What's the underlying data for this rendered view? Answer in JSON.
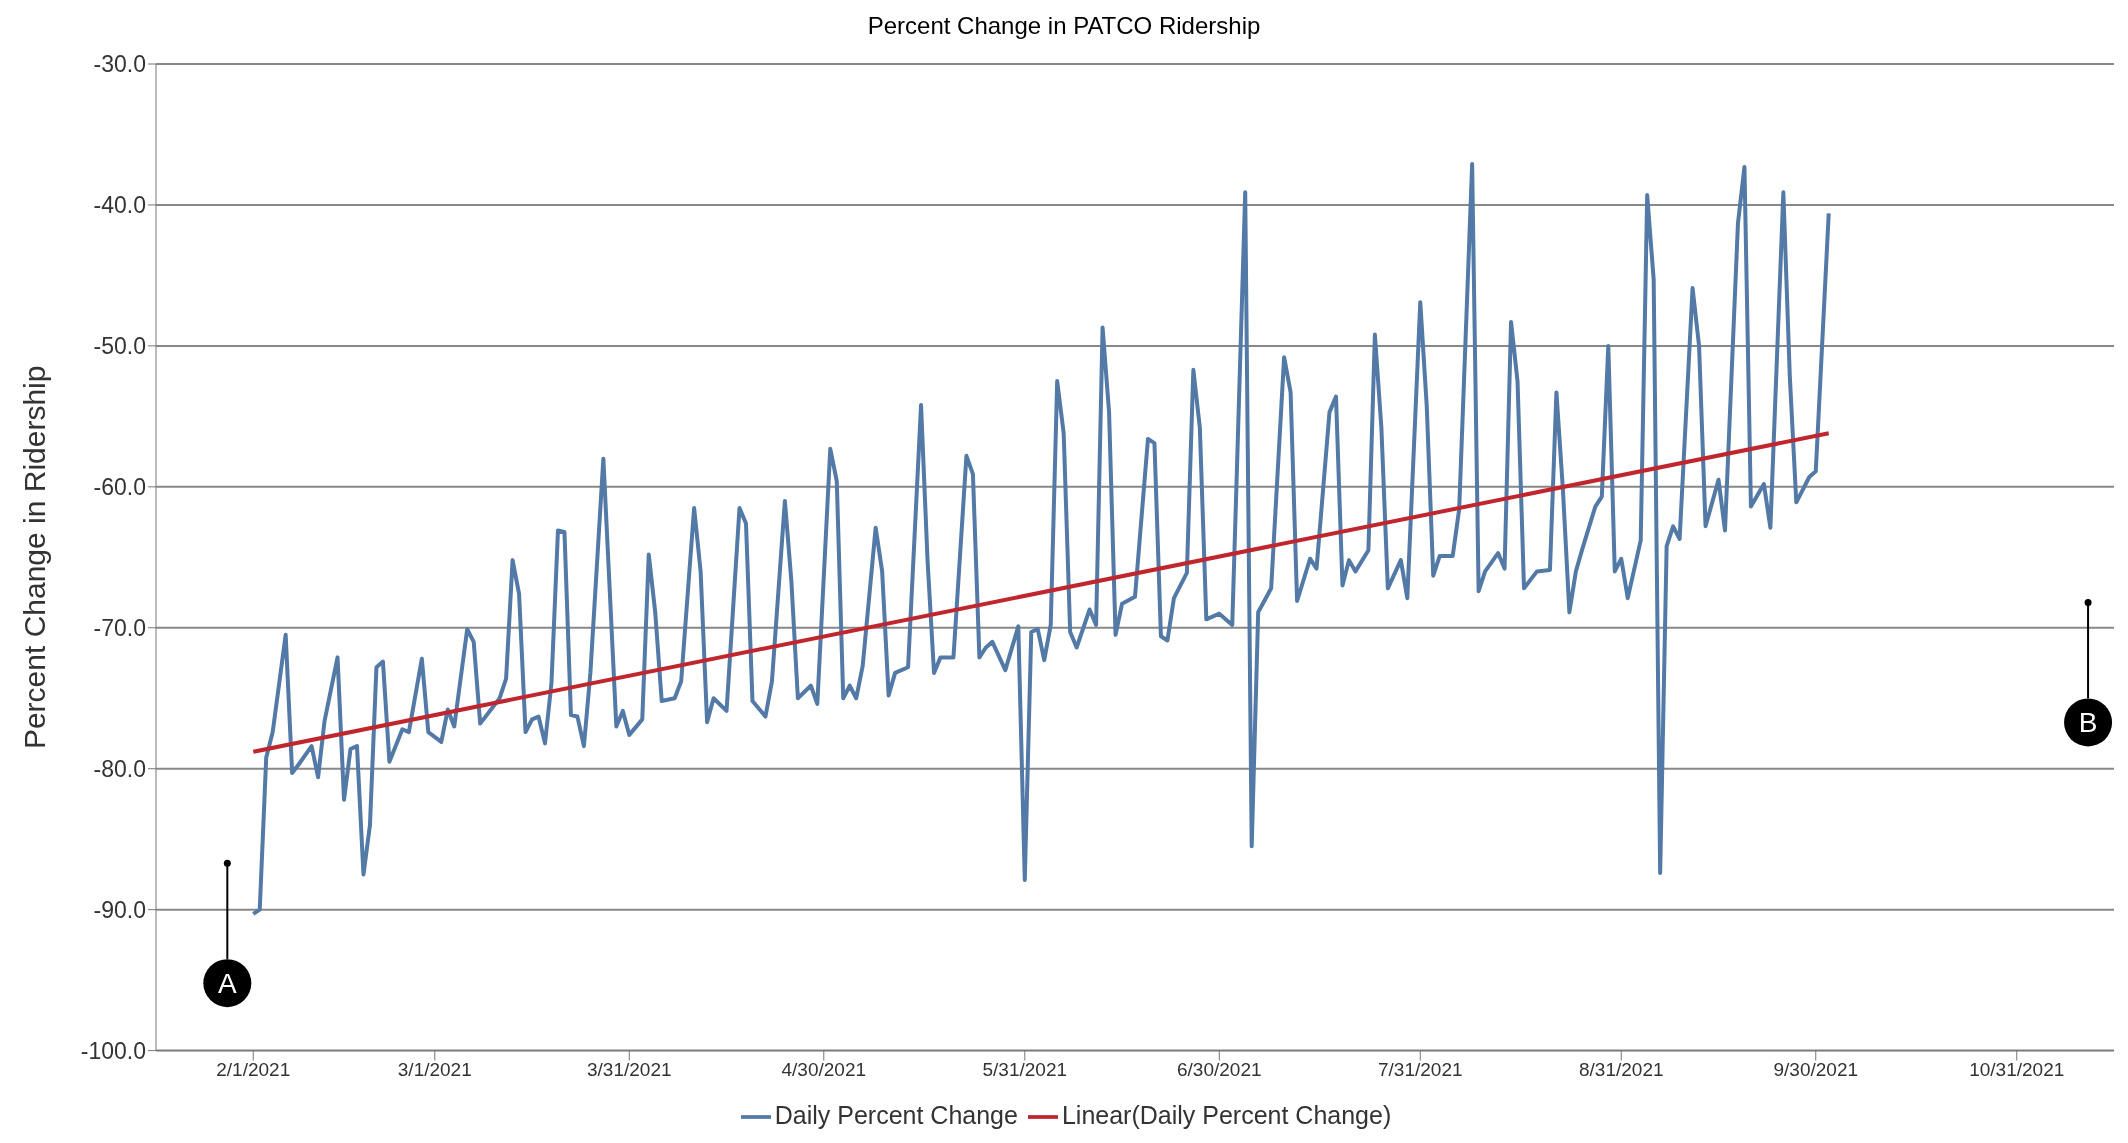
{
  "chart_data": {
    "type": "line",
    "title": "Percent Change in PATCO Ridership",
    "ylabel": "Percent Change in Ridership",
    "grid": "y",
    "legend": "bottom",
    "line_style": "solid",
    "xlim": [
      "2021-01-17",
      "2021-11-15"
    ],
    "xticks": [
      {
        "value": "2021-02-01",
        "label": "2/1/2021"
      },
      {
        "value": "2021-03-01",
        "label": "3/1/2021"
      },
      {
        "value": "2021-03-31",
        "label": "3/31/2021"
      },
      {
        "value": "2021-04-30",
        "label": "4/30/2021"
      },
      {
        "value": "2021-05-31",
        "label": "5/31/2021"
      },
      {
        "value": "2021-06-30",
        "label": "6/30/2021"
      },
      {
        "value": "2021-07-31",
        "label": "7/31/2021"
      },
      {
        "value": "2021-08-31",
        "label": "8/31/2021"
      },
      {
        "value": "2021-09-30",
        "label": "9/30/2021"
      },
      {
        "value": "2021-10-31",
        "label": "10/31/2021"
      }
    ],
    "ylim": [
      -100,
      -30
    ],
    "yticks": [
      {
        "value": -100,
        "label": "-100.0"
      },
      {
        "value": -90,
        "label": "-90.0"
      },
      {
        "value": -80,
        "label": "-80.0"
      },
      {
        "value": -70,
        "label": "-70.0"
      },
      {
        "value": -60,
        "label": "-60.0"
      },
      {
        "value": -50,
        "label": "-50.0"
      },
      {
        "value": -40,
        "label": "-40.0"
      },
      {
        "value": -30,
        "label": "-30.0"
      }
    ],
    "annotations": [
      {
        "text": "A",
        "x": "2021-01-28",
        "y": -86.7
      },
      {
        "text": "B",
        "x": "2021-11-11",
        "y": -68.2
      }
    ],
    "series": [
      {
        "name": "Daily Percent Change",
        "color": "#5379a6",
        "x": [
          "2021-02-01",
          "2021-02-02",
          "2021-02-03",
          "2021-02-04",
          "2021-02-06",
          "2021-02-07",
          "2021-02-08",
          "2021-02-10",
          "2021-02-11",
          "2021-02-12",
          "2021-02-14",
          "2021-02-15",
          "2021-02-16",
          "2021-02-17",
          "2021-02-18",
          "2021-02-19",
          "2021-02-20",
          "2021-02-21",
          "2021-02-22",
          "2021-02-24",
          "2021-02-25",
          "2021-02-27",
          "2021-02-28",
          "2021-03-02",
          "2021-03-03",
          "2021-03-04",
          "2021-03-06",
          "2021-03-07",
          "2021-03-08",
          "2021-03-11",
          "2021-03-12",
          "2021-03-13",
          "2021-03-14",
          "2021-03-15",
          "2021-03-16",
          "2021-03-17",
          "2021-03-18",
          "2021-03-19",
          "2021-03-20",
          "2021-03-21",
          "2021-03-22",
          "2021-03-23",
          "2021-03-24",
          "2021-03-25",
          "2021-03-27",
          "2021-03-29",
          "2021-03-30",
          "2021-03-31",
          "2021-04-02",
          "2021-04-03",
          "2021-04-04",
          "2021-04-05",
          "2021-04-07",
          "2021-04-08",
          "2021-04-10",
          "2021-04-11",
          "2021-04-12",
          "2021-04-13",
          "2021-04-15",
          "2021-04-17",
          "2021-04-18",
          "2021-04-19",
          "2021-04-21",
          "2021-04-22",
          "2021-04-24",
          "2021-04-25",
          "2021-04-26",
          "2021-04-28",
          "2021-04-29",
          "2021-05-01",
          "2021-05-02",
          "2021-05-03",
          "2021-05-04",
          "2021-05-05",
          "2021-05-06",
          "2021-05-08",
          "2021-05-09",
          "2021-05-10",
          "2021-05-11",
          "2021-05-13",
          "2021-05-15",
          "2021-05-16",
          "2021-05-17",
          "2021-05-18",
          "2021-05-20",
          "2021-05-22",
          "2021-05-23",
          "2021-05-24",
          "2021-05-25",
          "2021-05-26",
          "2021-05-28",
          "2021-05-30",
          "2021-05-31",
          "2021-06-01",
          "2021-06-02",
          "2021-06-03",
          "2021-06-04",
          "2021-06-05",
          "2021-06-06",
          "2021-06-07",
          "2021-06-08",
          "2021-06-10",
          "2021-06-11",
          "2021-06-12",
          "2021-06-13",
          "2021-06-14",
          "2021-06-15",
          "2021-06-17",
          "2021-06-19",
          "2021-06-20",
          "2021-06-21",
          "2021-06-22",
          "2021-06-23",
          "2021-06-25",
          "2021-06-26",
          "2021-06-27",
          "2021-06-28",
          "2021-06-30",
          "2021-07-02",
          "2021-07-04",
          "2021-07-05",
          "2021-07-06",
          "2021-07-08",
          "2021-07-10",
          "2021-07-11",
          "2021-07-12",
          "2021-07-14",
          "2021-07-15",
          "2021-07-17",
          "2021-07-18",
          "2021-07-19",
          "2021-07-20",
          "2021-07-21",
          "2021-07-23",
          "2021-07-24",
          "2021-07-25",
          "2021-07-26",
          "2021-07-28",
          "2021-07-29",
          "2021-07-31",
          "2021-08-01",
          "2021-08-02",
          "2021-08-03",
          "2021-08-05",
          "2021-08-06",
          "2021-08-08",
          "2021-08-09",
          "2021-08-10",
          "2021-08-12",
          "2021-08-13",
          "2021-08-14",
          "2021-08-15",
          "2021-08-16",
          "2021-08-18",
          "2021-08-20",
          "2021-08-21",
          "2021-08-22",
          "2021-08-23",
          "2021-08-24",
          "2021-08-25",
          "2021-08-27",
          "2021-08-28",
          "2021-08-29",
          "2021-08-30",
          "2021-08-31",
          "2021-09-01",
          "2021-09-03",
          "2021-09-04",
          "2021-09-05",
          "2021-09-06",
          "2021-09-07",
          "2021-09-08",
          "2021-09-09",
          "2021-09-11",
          "2021-09-12",
          "2021-09-13",
          "2021-09-15",
          "2021-09-16",
          "2021-09-18",
          "2021-09-19",
          "2021-09-20",
          "2021-09-22",
          "2021-09-23",
          "2021-09-25",
          "2021-09-26",
          "2021-09-27",
          "2021-09-29",
          "2021-09-30",
          "2021-10-02"
        ],
        "values": [
          -90.3,
          -90.0,
          -79.2,
          -77.4,
          -70.5,
          -80.3,
          -79.7,
          -78.4,
          -80.6,
          -76.6,
          -72.1,
          -82.2,
          -78.6,
          -78.4,
          -87.5,
          -84.0,
          -72.8,
          -72.4,
          -79.5,
          -77.2,
          -77.4,
          -72.2,
          -77.4,
          -78.1,
          -75.8,
          -77.0,
          -70.1,
          -71.0,
          -76.8,
          -75.0,
          -73.6,
          -65.2,
          -67.6,
          -77.4,
          -76.5,
          -76.3,
          -78.2,
          -73.9,
          -63.1,
          -63.2,
          -76.2,
          -76.3,
          -78.4,
          -73.2,
          -58.0,
          -77.0,
          -75.9,
          -77.6,
          -76.5,
          -64.8,
          -68.9,
          -75.2,
          -75.0,
          -73.8,
          -61.5,
          -66.0,
          -76.7,
          -75.0,
          -75.9,
          -61.5,
          -62.6,
          -75.2,
          -76.3,
          -73.8,
          -61.0,
          -66.7,
          -75.0,
          -74.1,
          -75.4,
          -57.3,
          -59.6,
          -75.0,
          -74.1,
          -75.0,
          -72.7,
          -62.9,
          -66.0,
          -74.8,
          -73.2,
          -72.8,
          -54.2,
          -65.2,
          -73.2,
          -72.1,
          -72.1,
          -57.8,
          -59.1,
          -72.1,
          -71.4,
          -71.0,
          -73.0,
          -69.9,
          -87.9,
          -70.3,
          -70.1,
          -72.3,
          -69.8,
          -52.5,
          -56.2,
          -70.3,
          -71.4,
          -68.7,
          -69.8,
          -48.7,
          -54.7,
          -70.5,
          -68.3,
          -67.8,
          -56.6,
          -56.9,
          -70.6,
          -70.9,
          -67.9,
          -66.1,
          -51.7,
          -55.8,
          -69.4,
          -69.0,
          -69.8,
          -39.1,
          -85.5,
          -68.9,
          -67.2,
          -50.8,
          -53.3,
          -68.1,
          -65.1,
          -65.8,
          -54.7,
          -53.6,
          -67.0,
          -65.2,
          -66.0,
          -64.5,
          -49.2,
          -55.8,
          -67.2,
          -65.2,
          -67.9,
          -46.9,
          -54.3,
          -66.3,
          -64.9,
          -64.9,
          -61.6,
          -37.1,
          -67.4,
          -66.0,
          -64.7,
          -65.8,
          -48.3,
          -52.5,
          -67.2,
          -66.0,
          -65.9,
          -53.3,
          -60.2,
          -68.9,
          -66.0,
          -64.4,
          -61.4,
          -60.7,
          -50.0,
          -66.0,
          -65.1,
          -67.9,
          -63.8,
          -39.3,
          -45.3,
          -87.4,
          -64.2,
          -62.8,
          -63.7,
          -45.9,
          -50.0,
          -62.8,
          -59.5,
          -63.1,
          -41.3,
          -37.3,
          -61.4,
          -59.8,
          -62.9,
          -39.1,
          -52.2,
          -61.1,
          -59.3,
          -58.9,
          -40.6
        ]
      },
      {
        "name": "Linear(Daily Percent Change)",
        "color": "#c0262d",
        "x": [
          "2021-02-01",
          "2021-10-02"
        ],
        "values": [
          -78.8,
          -56.2
        ]
      }
    ]
  }
}
